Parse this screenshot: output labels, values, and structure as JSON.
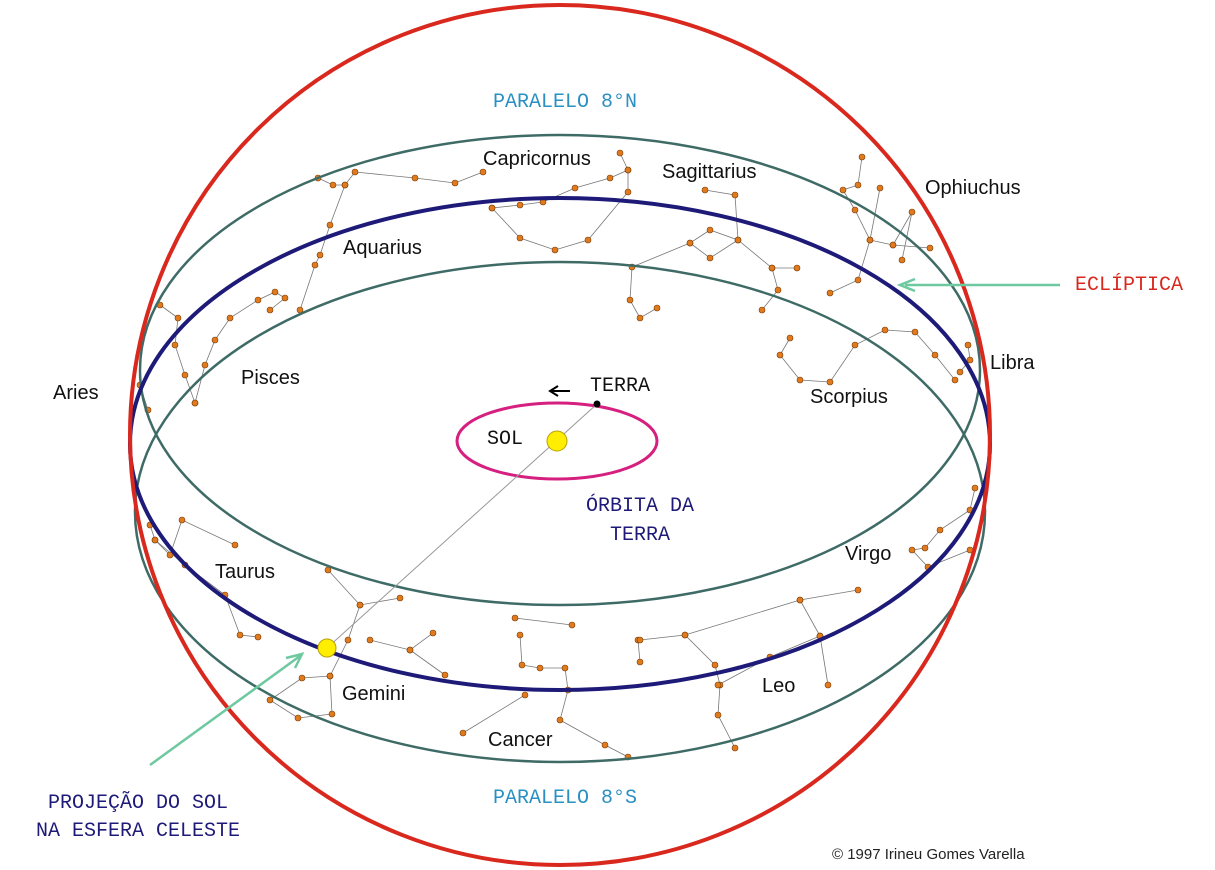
{
  "labels": {
    "parallel_north": "PARALELO 8°N",
    "parallel_south": "PARALELO 8°S",
    "ecliptic": "ECLÍPTICA",
    "sun_projection": [
      "PROJEÇÃO DO SOL",
      "NA ESFERA CELESTE"
    ],
    "earth": "TERRA",
    "sun": "SOL",
    "earth_orbit": [
      "ÓRBITA DA",
      "TERRA"
    ]
  },
  "constellations": [
    "Capricornus",
    "Sagittarius",
    "Ophiuchus",
    "Aquarius",
    "Pisces",
    "Aries",
    "Libra",
    "Scorpius",
    "Virgo",
    "Taurus",
    "Gemini",
    "Cancer",
    "Leo"
  ],
  "credit": "© 1997 Irineu Gomes Varella"
}
